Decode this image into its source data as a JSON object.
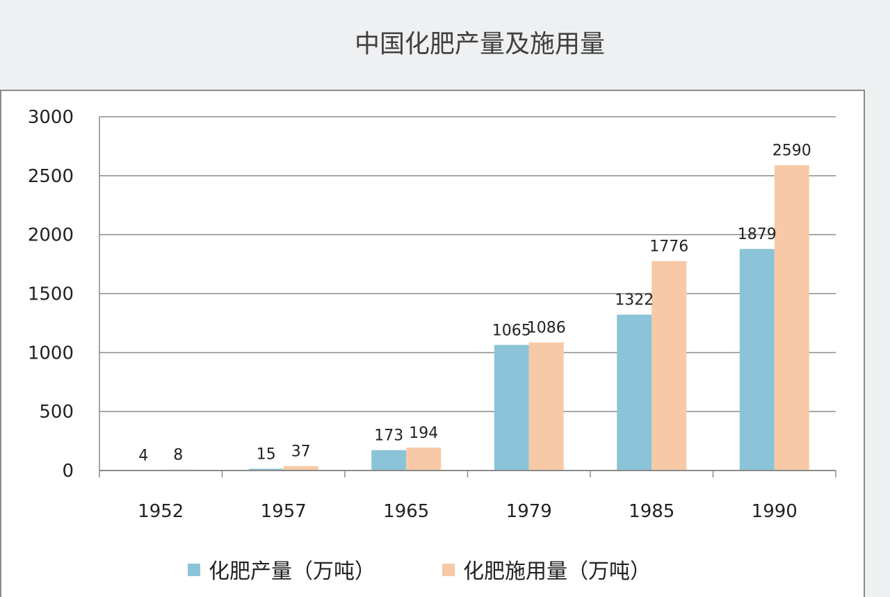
{
  "chart_data": {
    "type": "bar",
    "title": "中国化肥产量及施用量",
    "categories": [
      "1952",
      "1957",
      "1965",
      "1979",
      "1985",
      "1990"
    ],
    "series": [
      {
        "name": "化肥产量（万吨）",
        "values": [
          4,
          15,
          173,
          1065,
          1322,
          1879
        ],
        "labels": [
          "4",
          "15",
          "173",
          "1065",
          "1322",
          "1879"
        ],
        "color": "#8bc3d8"
      },
      {
        "name": "化肥施用量（万吨）",
        "values": [
          8,
          37,
          194,
          1086,
          1776,
          2590
        ],
        "labels": [
          "8",
          "37",
          "194",
          "1086",
          "1776",
          "2590"
        ],
        "color": "#f7c9a6"
      }
    ],
    "ylim": [
      0,
      3000
    ],
    "yticks": [
      0,
      500,
      1000,
      1500,
      2000,
      2500,
      3000
    ],
    "ytick_labels": [
      "0",
      "500",
      "1000",
      "1500",
      "2000",
      "2500",
      "3000"
    ],
    "xlabel": "",
    "ylabel": "",
    "grid": true,
    "legend_position": "bottom"
  }
}
